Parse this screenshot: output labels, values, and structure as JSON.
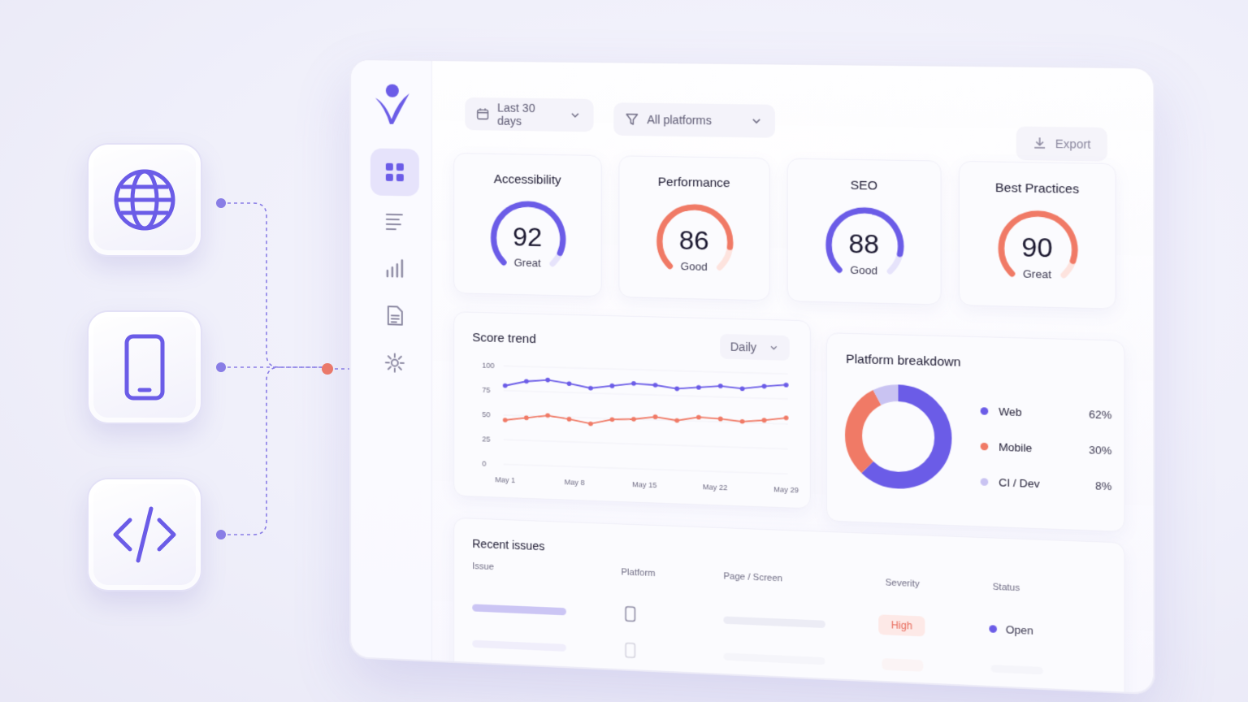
{
  "filters": {
    "date_range": "Last 30 days",
    "platforms": "All platforms",
    "export_label": "Export"
  },
  "platform_tiles": [
    {
      "icon": "globe-icon"
    },
    {
      "icon": "mobile-phone-icon"
    },
    {
      "icon": "code-icon"
    }
  ],
  "sidebar": {
    "items": [
      {
        "icon": "dashboard-grid-icon",
        "active": true
      },
      {
        "icon": "list-icon",
        "active": false
      },
      {
        "icon": "bar-chart-icon",
        "active": false
      },
      {
        "icon": "document-icon",
        "active": false
      },
      {
        "icon": "settings-gear-icon",
        "active": false
      }
    ]
  },
  "scores": [
    {
      "title": "Accessibility",
      "value": "92",
      "label": "Great",
      "color": "#6b5ce7"
    },
    {
      "title": "Performance",
      "value": "86",
      "label": "Good",
      "color": "#f07a66"
    },
    {
      "title": "SEO",
      "value": "88",
      "label": "Good",
      "color": "#6b5ce7"
    },
    {
      "title": "Best Practices",
      "value": "90",
      "label": "Great",
      "color": "#f07a66"
    }
  ],
  "trend": {
    "title": "Score trend",
    "granularity": "Daily"
  },
  "breakdown": {
    "title": "Platform breakdown",
    "items": [
      {
        "name": "Web",
        "pct": "62%",
        "color": "#6b5ce7"
      },
      {
        "name": "Mobile",
        "pct": "30%",
        "color": "#f07a66"
      },
      {
        "name": "CI / Dev",
        "pct": "8%",
        "color": "#c9c3f2"
      }
    ]
  },
  "issues": {
    "title": "Recent issues",
    "columns": [
      "Issue",
      "Platform",
      "Page / Screen",
      "Severity",
      "Status"
    ],
    "rows": [
      {
        "severity": "High",
        "status": "Open"
      }
    ]
  },
  "chart_data": {
    "type": "line",
    "title": "Score trend",
    "x_ticks": [
      "May 1",
      "May 8",
      "May 15",
      "May 22",
      "May 29"
    ],
    "y_ticks": [
      "100",
      "75",
      "50",
      "25",
      "0"
    ],
    "ylim": [
      0,
      100
    ],
    "series": [
      {
        "values": [
          80,
          85,
          87,
          84,
          80,
          83,
          86,
          85,
          82,
          84,
          86,
          84,
          87,
          89
        ],
        "color": "#6b5ce7"
      },
      {
        "values": [
          45,
          48,
          51,
          48,
          44,
          49,
          50,
          53,
          50,
          54,
          53,
          51,
          53,
          56
        ],
        "color": "#f07a66"
      }
    ]
  }
}
